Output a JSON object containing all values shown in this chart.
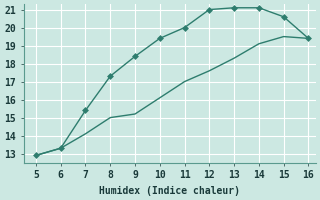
{
  "upper_x": [
    5,
    6,
    7,
    8,
    9,
    10,
    11,
    12,
    13,
    14,
    15,
    16
  ],
  "upper_y": [
    12.9,
    13.3,
    15.4,
    17.3,
    18.4,
    19.4,
    20.0,
    21.0,
    21.1,
    21.1,
    20.6,
    19.4
  ],
  "lower_x": [
    5,
    6,
    7,
    8,
    9,
    10,
    11,
    12,
    13,
    14,
    15,
    16
  ],
  "lower_y": [
    12.9,
    13.3,
    14.1,
    15.0,
    15.2,
    16.1,
    17.0,
    17.6,
    18.3,
    19.1,
    19.5,
    19.4
  ],
  "line_color": "#2e7d6e",
  "bg_color": "#cce8e2",
  "grid_color": "#ffffff",
  "xlabel": "Humidex (Indice chaleur)",
  "xlim": [
    5,
    16
  ],
  "ylim": [
    13,
    21
  ],
  "xticks": [
    5,
    6,
    7,
    8,
    9,
    10,
    11,
    12,
    13,
    14,
    15,
    16
  ],
  "yticks": [
    13,
    14,
    15,
    16,
    17,
    18,
    19,
    20,
    21
  ],
  "markersize": 3,
  "linewidth": 1.0,
  "font_size": 7
}
